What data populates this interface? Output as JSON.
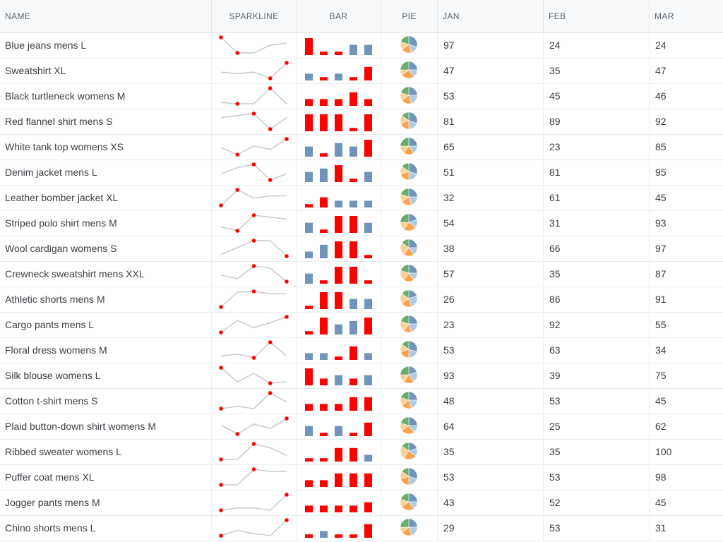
{
  "header": {
    "name": "NAME",
    "sparkline": "SPARKLINE",
    "bar": "BAR",
    "pie": "PIE",
    "jan": "JAN",
    "feb": "FEB",
    "mar": "MAR"
  },
  "colors": {
    "line": "#c9c9c9",
    "highlight": "#ff0000",
    "bar": "#7094bb",
    "pie": [
      "#7094bb",
      "#a9cde8",
      "#f8a34f",
      "#fbd19a",
      "#6aac6b"
    ]
  },
  "rows": [
    {
      "name": "Blue jeans mens L",
      "spark": [
        100,
        84,
        84,
        92,
        94
      ],
      "bars": [
        5,
        1,
        1,
        3,
        3
      ],
      "pie": [
        30,
        15,
        20,
        15,
        20
      ],
      "jan": "97",
      "feb": "24",
      "mar": "24"
    },
    {
      "name": "Sweatshirt XL",
      "spark": [
        88,
        86,
        88,
        80,
        100
      ],
      "bars": [
        2,
        1,
        2,
        1,
        4
      ],
      "pie": [
        25,
        15,
        25,
        10,
        25
      ],
      "jan": "47",
      "feb": "35",
      "mar": "47"
    },
    {
      "name": "Black turtleneck womens M",
      "spark": [
        88,
        87,
        87,
        100,
        87
      ],
      "bars": [
        2,
        2,
        2,
        4,
        2
      ],
      "pie": [
        25,
        20,
        20,
        15,
        20
      ],
      "jan": "53",
      "feb": "45",
      "mar": "46"
    },
    {
      "name": "Red flannel shirt mens S",
      "spark": [
        90,
        92,
        94,
        78,
        90
      ],
      "bars": [
        5,
        5,
        5,
        1,
        5
      ],
      "pie": [
        30,
        20,
        20,
        15,
        15
      ],
      "jan": "81",
      "feb": "89",
      "mar": "92"
    },
    {
      "name": "White tank top womens XS",
      "spark": [
        75,
        55,
        80,
        70,
        100
      ],
      "bars": [
        3,
        1,
        4,
        3,
        5
      ],
      "pie": [
        25,
        15,
        20,
        15,
        25
      ],
      "jan": "65",
      "feb": "23",
      "mar": "85"
    },
    {
      "name": "Denim jacket mens L",
      "spark": [
        80,
        90,
        95,
        70,
        80
      ],
      "bars": [
        3,
        4,
        5,
        1,
        3
      ],
      "pie": [
        30,
        20,
        20,
        15,
        15
      ],
      "jan": "51",
      "feb": "81",
      "mar": "95"
    },
    {
      "name": "Leather bomber jacket XL",
      "spark": [
        82,
        95,
        88,
        90,
        90
      ],
      "bars": [
        1,
        3,
        2,
        2,
        2
      ],
      "pie": [
        25,
        20,
        20,
        15,
        20
      ],
      "jan": "32",
      "feb": "61",
      "mar": "45"
    },
    {
      "name": "Striped polo shirt mens M",
      "spark": [
        60,
        50,
        90,
        85,
        80
      ],
      "bars": [
        3,
        1,
        5,
        5,
        3
      ],
      "pie": [
        20,
        15,
        25,
        15,
        25
      ],
      "jan": "54",
      "feb": "31",
      "mar": "93"
    },
    {
      "name": "Wool cardigan womens S",
      "spark": [
        72,
        80,
        88,
        88,
        70
      ],
      "bars": [
        2,
        4,
        5,
        5,
        1
      ],
      "pie": [
        25,
        15,
        20,
        25,
        15
      ],
      "jan": "38",
      "feb": "66",
      "mar": "97"
    },
    {
      "name": "Crewneck sweatshirt mens XXL",
      "spark": [
        74,
        67,
        90,
        86,
        62
      ],
      "bars": [
        3,
        1,
        5,
        5,
        1
      ],
      "pie": [
        25,
        15,
        20,
        20,
        20
      ],
      "jan": "57",
      "feb": "35",
      "mar": "87"
    },
    {
      "name": "Athletic shorts mens M",
      "spark": [
        65,
        91,
        92,
        88,
        88
      ],
      "bars": [
        1,
        5,
        5,
        3,
        3
      ],
      "pie": [
        20,
        25,
        20,
        20,
        15
      ],
      "jan": "26",
      "feb": "86",
      "mar": "91"
    },
    {
      "name": "Cargo pants mens L",
      "spark": [
        62,
        72,
        66,
        70,
        75
      ],
      "bars": [
        1,
        5,
        3,
        4,
        5
      ],
      "pie": [
        25,
        20,
        15,
        20,
        20
      ],
      "jan": "23",
      "feb": "92",
      "mar": "55"
    },
    {
      "name": "Floral dress womens M",
      "spark": [
        70,
        72,
        68,
        85,
        70
      ],
      "bars": [
        2,
        2,
        1,
        4,
        2
      ],
      "pie": [
        30,
        20,
        20,
        15,
        15
      ],
      "jan": "53",
      "feb": "63",
      "mar": "34"
    },
    {
      "name": "Silk blouse womens L",
      "spark": [
        100,
        80,
        92,
        78,
        80
      ],
      "bars": [
        5,
        2,
        3,
        2,
        3
      ],
      "pie": [
        20,
        20,
        20,
        15,
        25
      ],
      "jan": "93",
      "feb": "39",
      "mar": "75"
    },
    {
      "name": "Cotton t-shirt mens S",
      "spark": [
        85,
        86,
        85,
        92,
        88
      ],
      "bars": [
        2,
        2,
        2,
        4,
        4
      ],
      "pie": [
        25,
        20,
        20,
        15,
        20
      ],
      "jan": "48",
      "feb": "53",
      "mar": "45"
    },
    {
      "name": "Plaid button-down shirt womens M",
      "spark": [
        78,
        62,
        80,
        72,
        90
      ],
      "bars": [
        3,
        1,
        3,
        1,
        4
      ],
      "pie": [
        25,
        15,
        25,
        15,
        20
      ],
      "jan": "64",
      "feb": "25",
      "mar": "62"
    },
    {
      "name": "Ribbed sweater womens L",
      "spark": [
        75,
        75,
        95,
        90,
        80
      ],
      "bars": [
        1,
        1,
        4,
        4,
        2
      ],
      "pie": [
        20,
        15,
        25,
        25,
        15
      ],
      "jan": "35",
      "feb": "35",
      "mar": "100"
    },
    {
      "name": "Puffer coat mens XL",
      "spark": [
        78,
        78,
        92,
        90,
        90
      ],
      "bars": [
        2,
        2,
        4,
        4,
        4
      ],
      "pie": [
        30,
        20,
        20,
        15,
        15
      ],
      "jan": "53",
      "feb": "53",
      "mar": "98"
    },
    {
      "name": "Jogger pants mens M",
      "spark": [
        88,
        89,
        89,
        88,
        95
      ],
      "bars": [
        2,
        2,
        2,
        2,
        3
      ],
      "pie": [
        25,
        15,
        25,
        15,
        20
      ],
      "jan": "43",
      "feb": "52",
      "mar": "45"
    },
    {
      "name": "Chino shorts mens L",
      "spark": [
        80,
        85,
        82,
        80,
        95
      ],
      "bars": [
        1,
        2,
        1,
        1,
        4
      ],
      "pie": [
        25,
        20,
        20,
        10,
        25
      ],
      "jan": "29",
      "feb": "53",
      "mar": "31"
    }
  ]
}
